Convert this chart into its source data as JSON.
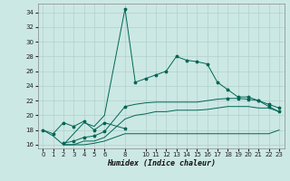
{
  "xlabel": "Humidex (Indice chaleur)",
  "bg_color": "#cce8e4",
  "grid_color": "#b0d0cc",
  "line_color": "#006655",
  "xlim": [
    -0.5,
    23.5
  ],
  "ylim": [
    15.5,
    35.2
  ],
  "yticks": [
    16,
    18,
    20,
    22,
    24,
    26,
    28,
    30,
    32,
    34
  ],
  "xticks": [
    0,
    1,
    2,
    3,
    4,
    5,
    6,
    8,
    10,
    11,
    12,
    13,
    14,
    15,
    16,
    17,
    18,
    19,
    20,
    21,
    22,
    23
  ],
  "line1_x": [
    0,
    1,
    2,
    3,
    4,
    5,
    6,
    8,
    9,
    10,
    11,
    12,
    13,
    14,
    15,
    16,
    17,
    18,
    19,
    20,
    21,
    22,
    23
  ],
  "line1_y": [
    18.0,
    17.2,
    16.0,
    17.5,
    19.0,
    18.5,
    20.0,
    34.5,
    24.5,
    25.0,
    25.5,
    26.0,
    28.0,
    27.5,
    27.3,
    27.0,
    24.5,
    23.5,
    22.5,
    22.5,
    22.0,
    21.2,
    20.5
  ],
  "line1_marker_x": [
    8,
    9,
    10,
    11,
    12,
    13,
    14,
    15,
    16,
    17,
    18,
    19,
    20,
    21,
    22,
    23
  ],
  "line1_marker_y": [
    34.5,
    24.5,
    25.0,
    25.5,
    26.0,
    28.0,
    27.5,
    27.3,
    27.0,
    24.5,
    23.5,
    22.5,
    22.5,
    22.0,
    21.2,
    20.5
  ],
  "line2_x": [
    2,
    3,
    4,
    5,
    6,
    8,
    9,
    10,
    11,
    12,
    13,
    14,
    15,
    16,
    17,
    18,
    19,
    20,
    21,
    22,
    23
  ],
  "line2_y": [
    16.2,
    16.5,
    17.0,
    17.2,
    17.8,
    21.2,
    21.5,
    21.7,
    21.8,
    21.8,
    21.8,
    21.8,
    21.8,
    22.0,
    22.2,
    22.3,
    22.3,
    22.2,
    22.0,
    21.5,
    21.0
  ],
  "line2_marker_x": [
    2,
    3,
    4,
    5,
    6,
    8,
    18,
    19,
    20,
    21,
    22,
    23
  ],
  "line2_marker_y": [
    16.2,
    16.5,
    17.0,
    17.2,
    17.8,
    21.2,
    22.3,
    22.3,
    22.2,
    22.0,
    21.5,
    21.0
  ],
  "line3_x": [
    2,
    3,
    4,
    5,
    6,
    8,
    9,
    10,
    11,
    12,
    13,
    14,
    15,
    16,
    17,
    18,
    19,
    20,
    21,
    22,
    23
  ],
  "line3_y": [
    16.0,
    16.0,
    16.5,
    16.5,
    17.0,
    19.5,
    20.0,
    20.2,
    20.5,
    20.5,
    20.7,
    20.7,
    20.7,
    20.8,
    21.0,
    21.2,
    21.2,
    21.2,
    21.0,
    21.0,
    20.5
  ],
  "line4_x": [
    2,
    3,
    4,
    5,
    6,
    8,
    9,
    10,
    11,
    12,
    13,
    14,
    15,
    16,
    17,
    18,
    19,
    20,
    21,
    22,
    23
  ],
  "line4_y": [
    16.0,
    16.0,
    16.0,
    16.2,
    16.5,
    17.5,
    17.5,
    17.5,
    17.5,
    17.5,
    17.5,
    17.5,
    17.5,
    17.5,
    17.5,
    17.5,
    17.5,
    17.5,
    17.5,
    17.5,
    18.0
  ],
  "line5_x": [
    0,
    1,
    2,
    3,
    4,
    5,
    6,
    8
  ],
  "line5_y": [
    18.0,
    17.5,
    19.0,
    18.5,
    19.2,
    18.0,
    19.0,
    18.2
  ],
  "line5_marker_x": [
    0,
    1,
    2,
    3,
    4,
    5,
    6,
    8
  ],
  "line5_marker_y": [
    18.0,
    17.5,
    19.0,
    18.5,
    19.2,
    18.0,
    19.0,
    18.2
  ],
  "figsize": [
    3.2,
    2.0
  ],
  "dpi": 100
}
